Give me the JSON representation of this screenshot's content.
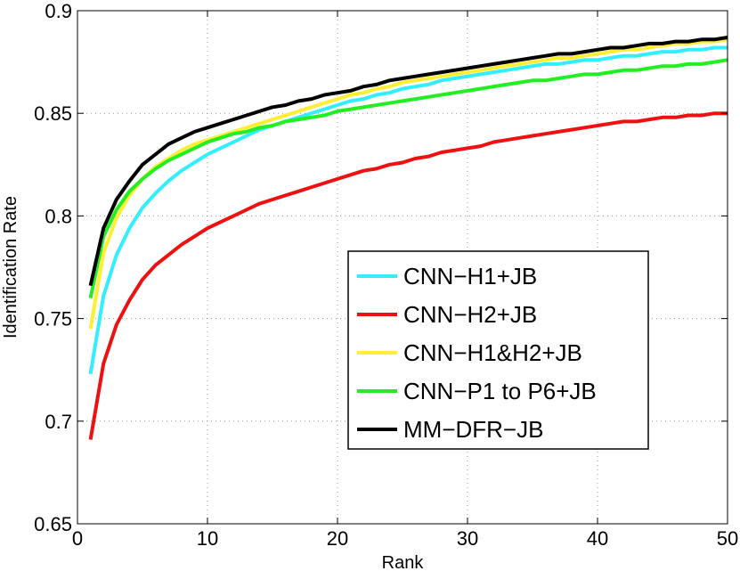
{
  "chart_data": {
    "type": "line",
    "xlabel": "Rank",
    "ylabel": "Identification Rate",
    "xlim": [
      0,
      50
    ],
    "ylim": [
      0.65,
      0.9
    ],
    "xticks": [
      "0",
      "10",
      "20",
      "30",
      "40",
      "50"
    ],
    "yticks": [
      "0.65",
      "0.7",
      "0.75",
      "0.8",
      "0.85",
      "0.9"
    ],
    "grid": true,
    "legend_position": "center-right",
    "x": [
      1,
      2,
      3,
      4,
      5,
      6,
      7,
      8,
      9,
      10,
      11,
      12,
      13,
      14,
      15,
      16,
      17,
      18,
      19,
      20,
      21,
      22,
      23,
      24,
      25,
      26,
      27,
      28,
      29,
      30,
      31,
      32,
      33,
      34,
      35,
      36,
      37,
      38,
      39,
      40,
      41,
      42,
      43,
      44,
      45,
      46,
      47,
      48,
      49,
      50
    ],
    "series": [
      {
        "name": "CNN−H1+JB",
        "color": "#33eeff",
        "values": [
          0.723,
          0.761,
          0.781,
          0.794,
          0.804,
          0.811,
          0.817,
          0.822,
          0.826,
          0.83,
          0.833,
          0.836,
          0.839,
          0.842,
          0.844,
          0.846,
          0.848,
          0.85,
          0.852,
          0.854,
          0.856,
          0.857,
          0.859,
          0.86,
          0.862,
          0.863,
          0.864,
          0.866,
          0.867,
          0.868,
          0.869,
          0.87,
          0.871,
          0.872,
          0.873,
          0.874,
          0.874,
          0.875,
          0.876,
          0.876,
          0.877,
          0.878,
          0.878,
          0.879,
          0.88,
          0.88,
          0.881,
          0.881,
          0.882,
          0.882
        ]
      },
      {
        "name": "CNN−H2+JB",
        "color": "#ee1111",
        "values": [
          0.691,
          0.728,
          0.747,
          0.759,
          0.769,
          0.776,
          0.781,
          0.786,
          0.79,
          0.794,
          0.797,
          0.8,
          0.803,
          0.806,
          0.808,
          0.81,
          0.812,
          0.814,
          0.816,
          0.818,
          0.82,
          0.822,
          0.823,
          0.825,
          0.826,
          0.828,
          0.829,
          0.831,
          0.832,
          0.833,
          0.834,
          0.836,
          0.837,
          0.838,
          0.839,
          0.84,
          0.841,
          0.842,
          0.843,
          0.844,
          0.845,
          0.846,
          0.846,
          0.847,
          0.848,
          0.848,
          0.849,
          0.849,
          0.85,
          0.85
        ]
      },
      {
        "name": "CNN−H1&H2+JB",
        "color": "#ffee33",
        "values": [
          0.745,
          0.782,
          0.799,
          0.81,
          0.818,
          0.824,
          0.828,
          0.832,
          0.835,
          0.837,
          0.839,
          0.841,
          0.843,
          0.845,
          0.847,
          0.849,
          0.851,
          0.853,
          0.855,
          0.857,
          0.859,
          0.86,
          0.862,
          0.863,
          0.865,
          0.866,
          0.867,
          0.868,
          0.869,
          0.87,
          0.871,
          0.872,
          0.873,
          0.874,
          0.875,
          0.876,
          0.877,
          0.877,
          0.878,
          0.879,
          0.88,
          0.881,
          0.881,
          0.882,
          0.883,
          0.884,
          0.884,
          0.885,
          0.885,
          0.886
        ]
      },
      {
        "name": "CNN−P1 to P6+JB",
        "color": "#22ee22",
        "values": [
          0.76,
          0.79,
          0.803,
          0.812,
          0.818,
          0.823,
          0.827,
          0.83,
          0.833,
          0.836,
          0.838,
          0.84,
          0.841,
          0.843,
          0.844,
          0.846,
          0.847,
          0.848,
          0.849,
          0.851,
          0.852,
          0.853,
          0.854,
          0.855,
          0.856,
          0.857,
          0.858,
          0.859,
          0.86,
          0.861,
          0.862,
          0.863,
          0.864,
          0.865,
          0.866,
          0.866,
          0.867,
          0.868,
          0.869,
          0.869,
          0.87,
          0.871,
          0.871,
          0.872,
          0.873,
          0.873,
          0.874,
          0.874,
          0.875,
          0.876
        ]
      },
      {
        "name": "MM−DFR−JB",
        "color": "#000000",
        "values": [
          0.766,
          0.794,
          0.808,
          0.817,
          0.825,
          0.83,
          0.835,
          0.838,
          0.841,
          0.843,
          0.845,
          0.847,
          0.849,
          0.851,
          0.853,
          0.854,
          0.856,
          0.857,
          0.859,
          0.86,
          0.861,
          0.863,
          0.864,
          0.866,
          0.867,
          0.868,
          0.869,
          0.87,
          0.871,
          0.872,
          0.873,
          0.874,
          0.875,
          0.876,
          0.877,
          0.878,
          0.879,
          0.879,
          0.88,
          0.881,
          0.882,
          0.882,
          0.883,
          0.884,
          0.884,
          0.885,
          0.885,
          0.886,
          0.886,
          0.887
        ]
      }
    ]
  }
}
